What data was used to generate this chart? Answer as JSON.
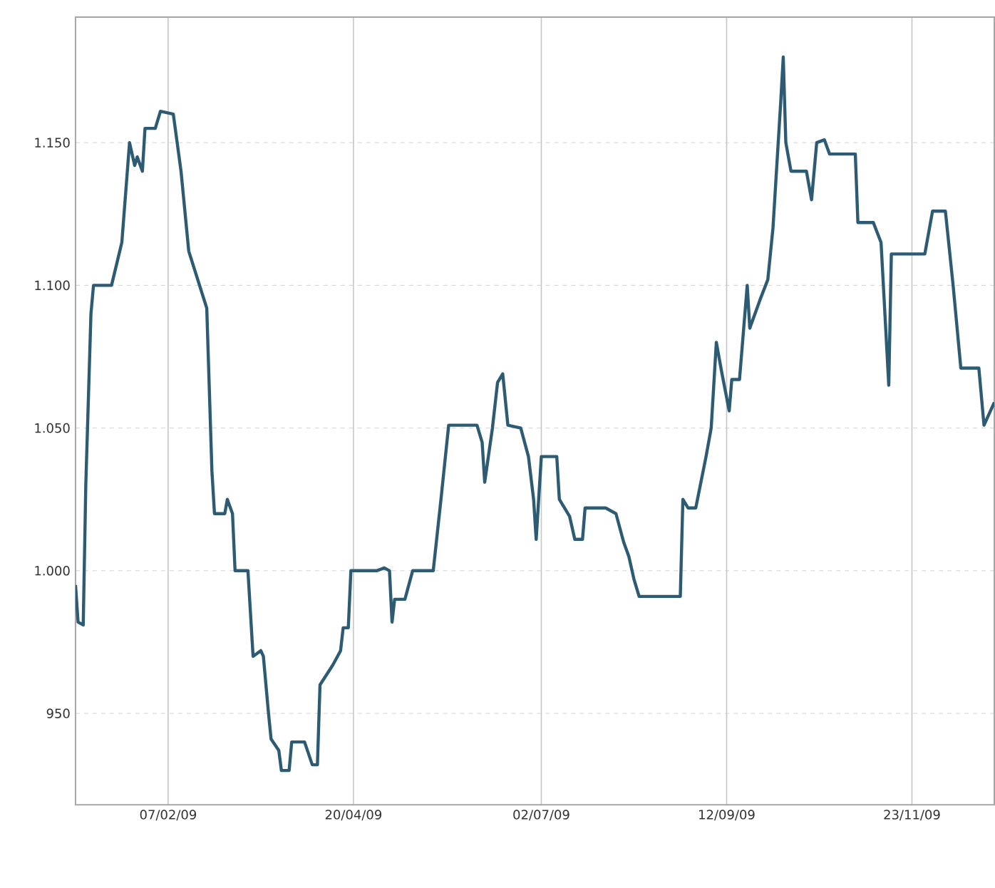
{
  "chart_data": {
    "type": "line",
    "color": "#2d5b74",
    "grid": true,
    "marker": "none",
    "line_style": "solid",
    "xlim": [
      "2009-01-02",
      "2009-12-25"
    ],
    "ylim": [
      918,
      1194
    ],
    "xticks": [
      {
        "value": "2009-02-07",
        "label": "07/02/09"
      },
      {
        "value": "2009-04-20",
        "label": "20/04/09"
      },
      {
        "value": "2009-07-02",
        "label": "02/07/09"
      },
      {
        "value": "2009-09-12",
        "label": "12/09/09"
      },
      {
        "value": "2009-11-23",
        "label": "23/11/09"
      }
    ],
    "yticks": [
      950,
      {
        "value": 1000,
        "label": "1.000"
      },
      {
        "value": 1050,
        "label": "1.050"
      },
      {
        "value": 1100,
        "label": "1.100"
      },
      {
        "value": 1150,
        "label": "1.150"
      }
    ],
    "x": [
      "2009-01-02",
      "2009-01-03",
      "2009-01-05",
      "2009-01-06",
      "2009-01-08",
      "2009-01-09",
      "2009-01-16",
      "2009-01-20",
      "2009-01-23",
      "2009-01-25",
      "2009-01-26",
      "2009-01-28",
      "2009-01-29",
      "2009-02-02",
      "2009-02-04",
      "2009-02-09",
      "2009-02-12",
      "2009-02-15",
      "2009-02-22",
      "2009-02-24",
      "2009-02-25",
      "2009-03-01",
      "2009-03-02",
      "2009-03-04",
      "2009-03-05",
      "2009-03-10",
      "2009-03-12",
      "2009-03-15",
      "2009-03-16",
      "2009-03-18",
      "2009-03-19",
      "2009-03-22",
      "2009-03-23",
      "2009-03-26",
      "2009-03-27",
      "2009-04-01",
      "2009-04-04",
      "2009-04-06",
      "2009-04-07",
      "2009-04-12",
      "2009-04-15",
      "2009-04-16",
      "2009-04-18",
      "2009-04-19",
      "2009-04-29",
      "2009-05-02",
      "2009-05-04",
      "2009-05-05",
      "2009-05-06",
      "2009-05-10",
      "2009-05-13",
      "2009-05-21",
      "2009-05-24",
      "2009-05-27",
      "2009-06-07",
      "2009-06-09",
      "2009-06-10",
      "2009-06-13",
      "2009-06-15",
      "2009-06-17",
      "2009-06-19",
      "2009-06-24",
      "2009-06-27",
      "2009-06-29",
      "2009-06-30",
      "2009-07-02",
      "2009-07-08",
      "2009-07-09",
      "2009-07-13",
      "2009-07-15",
      "2009-07-18",
      "2009-07-19",
      "2009-07-27",
      "2009-07-31",
      "2009-08-03",
      "2009-08-05",
      "2009-08-07",
      "2009-08-09",
      "2009-08-25",
      "2009-08-26",
      "2009-08-28",
      "2009-08-31",
      "2009-09-04",
      "2009-09-06",
      "2009-09-08",
      "2009-09-10",
      "2009-09-13",
      "2009-09-14",
      "2009-09-17",
      "2009-09-20",
      "2009-09-21",
      "2009-09-25",
      "2009-09-28",
      "2009-09-30",
      "2009-10-03",
      "2009-10-04",
      "2009-10-05",
      "2009-10-07",
      "2009-10-13",
      "2009-10-15",
      "2009-10-17",
      "2009-10-20",
      "2009-10-22",
      "2009-11-01",
      "2009-11-02",
      "2009-11-08",
      "2009-11-11",
      "2009-11-14",
      "2009-11-15",
      "2009-11-28",
      "2009-12-01",
      "2009-12-06",
      "2009-12-09",
      "2009-12-12",
      "2009-12-19",
      "2009-12-21",
      "2009-12-25"
    ],
    "values": [
      995,
      982,
      981,
      1030,
      1090,
      1100,
      1100,
      1115,
      1150,
      1142,
      1145,
      1140,
      1155,
      1155,
      1161,
      1160,
      1140,
      1112,
      1092,
      1035,
      1020,
      1020,
      1025,
      1020,
      1000,
      1000,
      970,
      972,
      970,
      950,
      941,
      937,
      930,
      930,
      940,
      940,
      932,
      932,
      960,
      967,
      972,
      980,
      980,
      1000,
      1000,
      1001,
      1000,
      982,
      990,
      990,
      1000,
      1000,
      1025,
      1051,
      1051,
      1045,
      1031,
      1050,
      1066,
      1069,
      1051,
      1050,
      1040,
      1025,
      1011,
      1040,
      1040,
      1025,
      1019,
      1011,
      1011,
      1022,
      1022,
      1020,
      1010,
      1005,
      997,
      991,
      991,
      1025,
      1022,
      1022,
      1040,
      1050,
      1080,
      1070,
      1056,
      1067,
      1067,
      1100,
      1085,
      1095,
      1102,
      1120,
      1164,
      1180,
      1150,
      1140,
      1140,
      1130,
      1150,
      1151,
      1146,
      1146,
      1122,
      1122,
      1115,
      1065,
      1111,
      1111,
      1126,
      1126,
      1100,
      1071,
      1071,
      1051,
      1059
    ]
  }
}
